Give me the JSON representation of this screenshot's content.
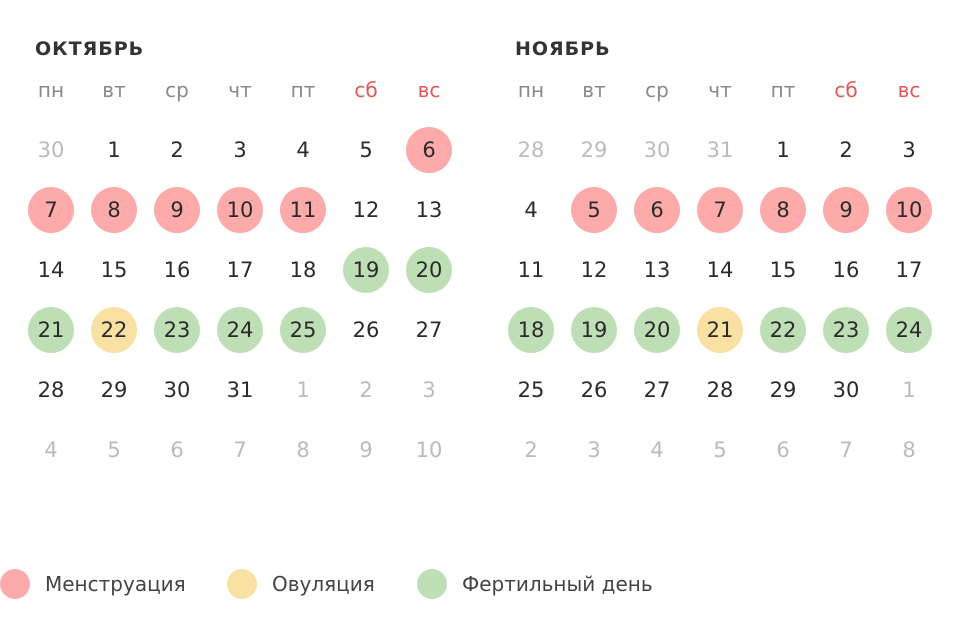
{
  "weekdays": [
    "пн",
    "вт",
    "ср",
    "чт",
    "пт",
    "сб",
    "вс"
  ],
  "weekend_color": "#e05a5a",
  "status_colors": {
    "menstruation": "#fcaaaa",
    "ovulation": "#f8e1a3",
    "fertile": "#bedfb5",
    "muted_text": "#bbbbbb"
  },
  "months": [
    {
      "title": "ОКТЯБРЬ",
      "weeks": [
        [
          {
            "d": "30",
            "muted": true
          },
          {
            "d": "1"
          },
          {
            "d": "2"
          },
          {
            "d": "3"
          },
          {
            "d": "4"
          },
          {
            "d": "5"
          },
          {
            "d": "6",
            "status": "menstruation"
          }
        ],
        [
          {
            "d": "7",
            "status": "menstruation"
          },
          {
            "d": "8",
            "status": "menstruation"
          },
          {
            "d": "9",
            "status": "menstruation"
          },
          {
            "d": "10",
            "status": "menstruation"
          },
          {
            "d": "11",
            "status": "menstruation"
          },
          {
            "d": "12"
          },
          {
            "d": "13"
          }
        ],
        [
          {
            "d": "14"
          },
          {
            "d": "15"
          },
          {
            "d": "16"
          },
          {
            "d": "17"
          },
          {
            "d": "18"
          },
          {
            "d": "19",
            "status": "fertile"
          },
          {
            "d": "20",
            "status": "fertile"
          }
        ],
        [
          {
            "d": "21",
            "status": "fertile"
          },
          {
            "d": "22",
            "status": "ovulation"
          },
          {
            "d": "23",
            "status": "fertile"
          },
          {
            "d": "24",
            "status": "fertile"
          },
          {
            "d": "25",
            "status": "fertile"
          },
          {
            "d": "26"
          },
          {
            "d": "27"
          }
        ],
        [
          {
            "d": "28"
          },
          {
            "d": "29"
          },
          {
            "d": "30"
          },
          {
            "d": "31"
          },
          {
            "d": "1",
            "muted": true
          },
          {
            "d": "2",
            "muted": true
          },
          {
            "d": "3",
            "muted": true
          }
        ],
        [
          {
            "d": "4",
            "muted": true
          },
          {
            "d": "5",
            "muted": true
          },
          {
            "d": "6",
            "muted": true
          },
          {
            "d": "7",
            "muted": true
          },
          {
            "d": "8",
            "muted": true
          },
          {
            "d": "9",
            "muted": true
          },
          {
            "d": "10",
            "muted": true
          }
        ]
      ]
    },
    {
      "title": "НОЯБРЬ",
      "weeks": [
        [
          {
            "d": "28",
            "muted": true
          },
          {
            "d": "29",
            "muted": true
          },
          {
            "d": "30",
            "muted": true
          },
          {
            "d": "31",
            "muted": true
          },
          {
            "d": "1"
          },
          {
            "d": "2"
          },
          {
            "d": "3"
          }
        ],
        [
          {
            "d": "4"
          },
          {
            "d": "5",
            "status": "menstruation"
          },
          {
            "d": "6",
            "status": "menstruation"
          },
          {
            "d": "7",
            "status": "menstruation"
          },
          {
            "d": "8",
            "status": "menstruation"
          },
          {
            "d": "9",
            "status": "menstruation"
          },
          {
            "d": "10",
            "status": "menstruation"
          }
        ],
        [
          {
            "d": "11"
          },
          {
            "d": "12"
          },
          {
            "d": "13"
          },
          {
            "d": "14"
          },
          {
            "d": "15"
          },
          {
            "d": "16"
          },
          {
            "d": "17"
          }
        ],
        [
          {
            "d": "18",
            "status": "fertile"
          },
          {
            "d": "19",
            "status": "fertile"
          },
          {
            "d": "20",
            "status": "fertile"
          },
          {
            "d": "21",
            "status": "ovulation"
          },
          {
            "d": "22",
            "status": "fertile"
          },
          {
            "d": "23",
            "status": "fertile"
          },
          {
            "d": "24",
            "status": "fertile"
          }
        ],
        [
          {
            "d": "25"
          },
          {
            "d": "26"
          },
          {
            "d": "27"
          },
          {
            "d": "28"
          },
          {
            "d": "29"
          },
          {
            "d": "30"
          },
          {
            "d": "1",
            "muted": true
          }
        ],
        [
          {
            "d": "2",
            "muted": true
          },
          {
            "d": "3",
            "muted": true
          },
          {
            "d": "4",
            "muted": true
          },
          {
            "d": "5",
            "muted": true
          },
          {
            "d": "6",
            "muted": true
          },
          {
            "d": "7",
            "muted": true
          },
          {
            "d": "8",
            "muted": true
          }
        ]
      ]
    }
  ],
  "legend": [
    {
      "label": "Менструация",
      "status": "menstruation"
    },
    {
      "label": "Овуляция",
      "status": "ovulation"
    },
    {
      "label": "Фертильный день",
      "status": "fertile"
    }
  ]
}
